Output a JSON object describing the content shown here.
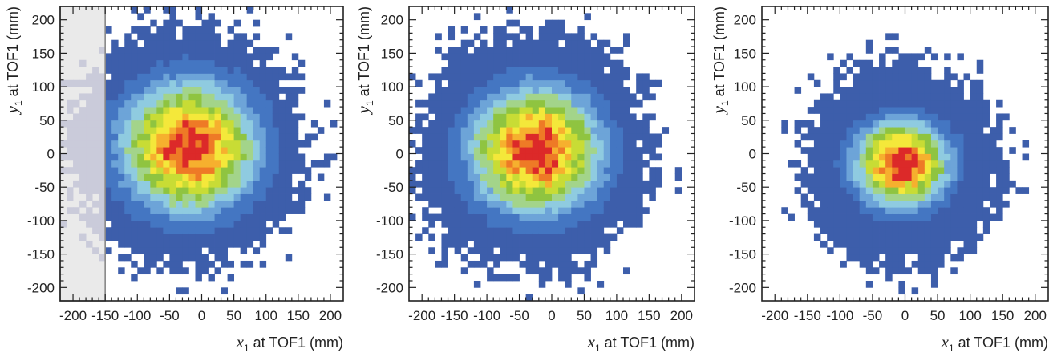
{
  "chart_data": [
    {
      "type": "heatmap",
      "panel": "left",
      "xlabel": {
        "var": "x",
        "sub": "1",
        "text": " at TOF1 (mm)"
      },
      "ylabel": {
        "var": "y",
        "sub": "1",
        "text": " at TOF1 (mm)"
      },
      "xlim": [
        -220,
        220
      ],
      "ylim": [
        -220,
        220
      ],
      "xticks": [
        "-200",
        "-150",
        "-100",
        "-50",
        "0",
        "50",
        "100",
        "150",
        "200"
      ],
      "yticks": [
        "200",
        "150",
        "100",
        "50",
        "0",
        "-50",
        "-100",
        "-150",
        "-200"
      ],
      "bin_size_mm": 10,
      "distribution": {
        "center": [
          -20,
          10
        ],
        "sigma": [
          65,
          60
        ],
        "outer_radius": 200
      },
      "shaded_region": {
        "x": [
          -220,
          -150
        ],
        "color": "#e2e2e2"
      }
    },
    {
      "type": "heatmap",
      "panel": "middle",
      "xlabel": {
        "var": "x",
        "sub": "1",
        "text": " at TOF1 (mm)"
      },
      "ylabel": {
        "var": "y",
        "sub": "1",
        "text": " at TOF1 (mm)"
      },
      "xlim": [
        -220,
        220
      ],
      "ylim": [
        -220,
        220
      ],
      "xticks": [
        "-200",
        "-150",
        "-100",
        "-50",
        "0",
        "50",
        "100",
        "150",
        "200"
      ],
      "yticks": [
        "200",
        "150",
        "100",
        "50",
        "0",
        "-50",
        "-100",
        "-150",
        "-200"
      ],
      "bin_size_mm": 10,
      "distribution": {
        "center": [
          -25,
          5
        ],
        "sigma": [
          62,
          58
        ],
        "outer_radius": 200
      }
    },
    {
      "type": "heatmap",
      "panel": "right",
      "xlabel": {
        "var": "x",
        "sub": "1",
        "text": " at TOF1 (mm)"
      },
      "ylabel": {
        "var": "y",
        "sub": "1",
        "text": " at TOF1 (mm)"
      },
      "xlim": [
        -220,
        220
      ],
      "ylim": [
        -220,
        220
      ],
      "xticks": [
        "-200",
        "-150",
        "-100",
        "-50",
        "0",
        "50",
        "100",
        "150",
        "200"
      ],
      "yticks": [
        "200",
        "150",
        "100",
        "50",
        "0",
        "-50",
        "-100",
        "-150",
        "-200"
      ],
      "bin_size_mm": 10,
      "distribution": {
        "center": [
          -5,
          -15
        ],
        "sigma": [
          45,
          40
        ],
        "outer_radius": 170
      }
    }
  ],
  "colors": {
    "scale": [
      "#3d5eab",
      "#4476c2",
      "#6da4d8",
      "#8fcbe0",
      "#a3d48a",
      "#8fc440",
      "#c8dc35",
      "#f4e83a",
      "#f6b02e",
      "#ee7a26",
      "#dc2929"
    ],
    "frame": "#222222",
    "background": "#ffffff"
  }
}
